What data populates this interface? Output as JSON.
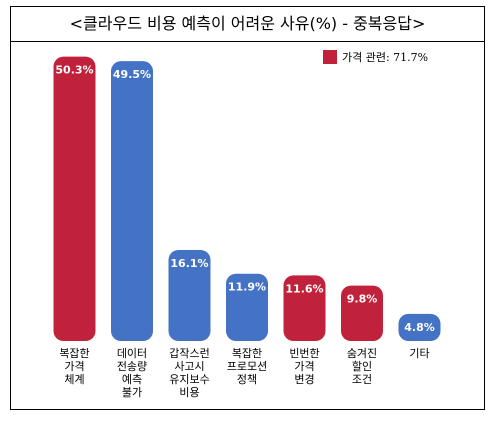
{
  "chart_data": {
    "type": "bar",
    "title": "<클라우드 비용 예측이 어려운 사유(%) - 중복응답>",
    "categories": [
      [
        "복잡한",
        "가격",
        "체계"
      ],
      [
        "데이터",
        "전송량",
        "예측",
        "불가"
      ],
      [
        "갑작스런",
        "사고시",
        "유지보수",
        "비용"
      ],
      [
        "복잡한",
        "프로모션",
        "정책"
      ],
      [
        "빈번한",
        "가격",
        "변경"
      ],
      [
        "숨겨진",
        "할인",
        "조건"
      ],
      [
        "기타"
      ]
    ],
    "values": [
      50.3,
      49.5,
      16.1,
      11.9,
      11.6,
      9.8,
      4.8
    ],
    "value_labels": [
      "50.3%",
      "49.5%",
      "16.1%",
      "11.9%",
      "11.6%",
      "9.8%",
      "4.8%"
    ],
    "bar_groups": [
      "price",
      "other",
      "other",
      "other",
      "price",
      "price",
      "other"
    ],
    "legend": {
      "label": "가격 관련: 71.7%",
      "placement": "top-right"
    },
    "colors": {
      "price": "#c0223b",
      "other": "#4472c4"
    },
    "ylim": [
      0,
      52
    ],
    "grid": false
  }
}
